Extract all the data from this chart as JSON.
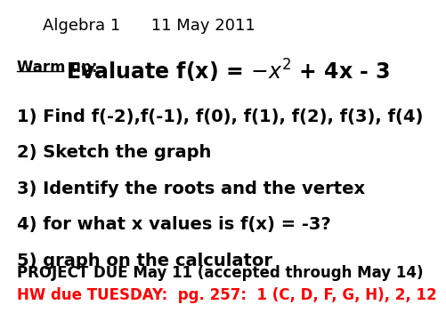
{
  "title": "Algebra 1      11 May 2011",
  "title_fontsize": 13,
  "title_color": "#000000",
  "background_color": "#ffffff",
  "warm_up_label": "Warm up:",
  "warm_up_label_fontsize": 12,
  "evaluate_text": "Evaluate f(x) = $-x^2$ + 4x - 3",
  "evaluate_fontsize": 17,
  "lines": [
    "1) Find f(-2),f(-1), f(0), f(1), f(2), f(3), f(4)",
    "2) Sketch the graph",
    "3) Identify the roots and the vertex",
    "4) for what x values is f(x) = -3?",
    "5) graph on the calculator"
  ],
  "lines_fontsize": 14,
  "lines_color": "#000000",
  "project_line": "PROJECT DUE May 11 (accepted through May 14)",
  "project_fontsize": 12,
  "project_color": "#000000",
  "hw_line": "HW due TUESDAY:  pg. 257:  1 (C, D, F, G, H), 2, 12",
  "hw_fontsize": 12,
  "hw_color": "#ff0000"
}
